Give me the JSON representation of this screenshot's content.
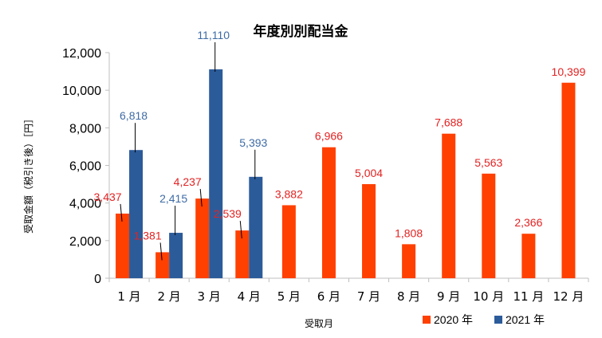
{
  "chart_data": {
    "type": "bar",
    "title": "年度別別配当金",
    "xlabel": "受取月",
    "ylabel": "受取金額（税引き後）［円］",
    "categories": [
      "1月",
      "2月",
      "3月",
      "4月",
      "5月",
      "6月",
      "7月",
      "8月",
      "9月",
      "10月",
      "11月",
      "12月"
    ],
    "series": [
      {
        "name": "2020 年",
        "color": "#ff4000",
        "label_color": "#e32222",
        "values": [
          3437,
          1381,
          4237,
          2539,
          3882,
          6966,
          5004,
          1808,
          7688,
          5563,
          2366,
          10399
        ],
        "labels": [
          "3,437",
          "1,381",
          "4,237",
          "2,539",
          "3,882",
          "6,966",
          "5,004",
          "1,808",
          "7,688",
          "5,563",
          "2,366",
          "10,399"
        ]
      },
      {
        "name": "2021 年",
        "color": "#2c5b9a",
        "label_color": "#3e6ba5",
        "values": [
          6818,
          2415,
          11110,
          5393,
          null,
          null,
          null,
          null,
          null,
          null,
          null,
          null
        ],
        "labels": [
          "6,818",
          "2,415",
          "11,110",
          "5,393",
          null,
          null,
          null,
          null,
          null,
          null,
          null,
          null
        ]
      }
    ],
    "ylim": [
      0,
      12000
    ],
    "yticks": [
      "0",
      "2,000",
      "4,000",
      "6,000",
      "8,000",
      "10,000",
      "12,000"
    ],
    "grid": false,
    "legend_position": "bottom-right",
    "leader_lines": true
  }
}
